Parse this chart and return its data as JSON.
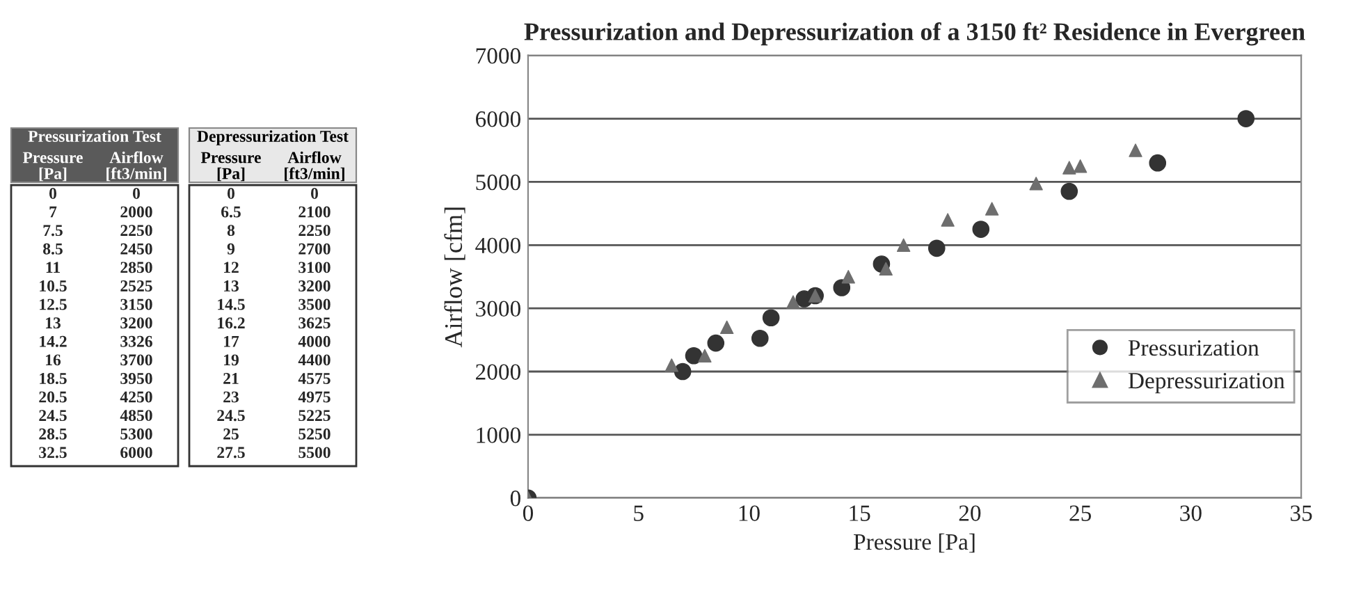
{
  "chart_data": [
    {
      "type": "other",
      "annotations": [
        "Pressurization Test",
        "Depressurization Test",
        "Pressure\n[Pa]",
        "Airflow\n[ft3/min]",
        "Pressure\n[Pa]",
        "Airflow\n[ft3/min]",
        "0",
        "0",
        "0",
        "0",
        "7",
        "2000",
        "6.5",
        "2100",
        "7.5",
        "2250",
        "8",
        "2250",
        "8.5",
        "2450",
        "9",
        "2700",
        "11",
        "2850",
        "12",
        "3100",
        "10.5",
        "2525",
        "13",
        "3200",
        "12.5",
        "3150",
        "14.5",
        "3500",
        "13",
        "3200",
        "16.2",
        "3625",
        "14.2",
        "3326",
        "17",
        "4000",
        "16",
        "3700",
        "19",
        "4400",
        "18.5",
        "3950",
        "21",
        "4575",
        "20.5",
        "4250",
        "23",
        "4975",
        "24.5",
        "4850",
        "24.5",
        "5225",
        "28.5",
        "5300",
        "25",
        "5250",
        "32.5",
        "6000",
        "27.5",
        "5500"
      ]
    },
    {
      "type": "scatter",
      "title": "Pressurization and Depressurization of a 3150 ft² Residence in Evergreen",
      "xlabel": "Pressure [Pa]",
      "ylabel": "Airflow [cfm]",
      "series": [
        {
          "name": "Pressurization",
          "color": "#333333",
          "marker": "circle",
          "x": [
            0,
            7,
            7.5,
            8.5,
            11,
            10.5,
            12.5,
            13,
            14.2,
            16,
            18.5,
            20.5,
            24.5,
            28.5,
            32.5
          ],
          "values": [
            0,
            2000,
            2250,
            2450,
            2850,
            2525,
            3150,
            3200,
            3326,
            3700,
            3950,
            4250,
            4850,
            5300,
            6000
          ]
        },
        {
          "name": "Depressurization",
          "color": "#6e6e6e",
          "marker": "triangle",
          "x": [
            0,
            6.5,
            8,
            9,
            12,
            13,
            14.5,
            16.2,
            17,
            19,
            21,
            23,
            24.5,
            25,
            27.5
          ],
          "values": [
            0,
            2100,
            2250,
            2700,
            3100,
            3200,
            3500,
            3625,
            4000,
            4400,
            4575,
            4975,
            5225,
            5250,
            5500
          ]
        }
      ],
      "xlim": [
        0,
        35
      ],
      "xticks": [
        0,
        5,
        10,
        15,
        20,
        25,
        30,
        35
      ],
      "ylim": [
        0,
        7000
      ],
      "yticks": [
        0,
        1000,
        2000,
        3000,
        4000,
        5000,
        6000,
        7000
      ],
      "grid": "y",
      "legend": "bottom right"
    }
  ]
}
